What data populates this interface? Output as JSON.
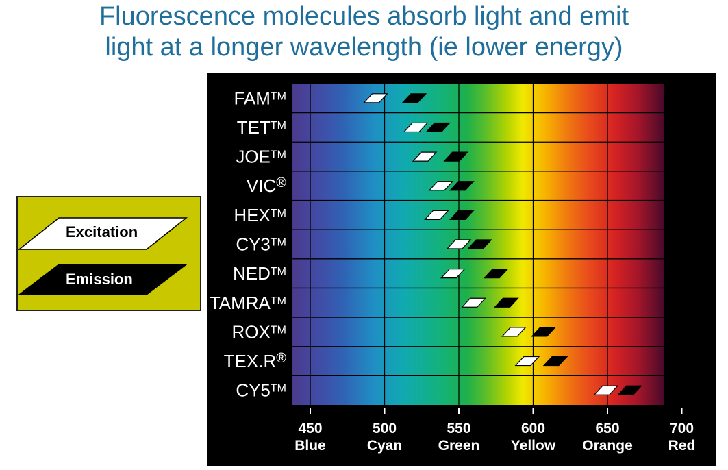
{
  "title_line1": "Fluorescence molecules absorb light and emit",
  "title_line2": "light at a longer wavelength (ie lower energy)",
  "legend": {
    "excitation_label": "Excitation",
    "emission_label": "Emission",
    "background_color": "#c9c800"
  },
  "chart_data": {
    "type": "range",
    "xlim": [
      430,
      690
    ],
    "x_ticks": [
      450,
      500,
      550,
      600,
      650,
      700
    ],
    "x_tick_colors": [
      "Blue",
      "Cyan",
      "Green",
      "Yellow",
      "Orange",
      "Red"
    ],
    "series": [
      {
        "name": "Excitation",
        "color": "#ffffff"
      },
      {
        "name": "Emission",
        "color": "#000000"
      }
    ],
    "dyes": [
      {
        "name": "FAM",
        "mark": "TM",
        "excitation": 494,
        "emission": 520
      },
      {
        "name": "TET",
        "mark": "TM",
        "excitation": 521,
        "emission": 536
      },
      {
        "name": "JOE",
        "mark": "TM",
        "excitation": 527,
        "emission": 548
      },
      {
        "name": "VIC",
        "mark": "®",
        "excitation": 538,
        "emission": 552
      },
      {
        "name": "HEX",
        "mark": "TM",
        "excitation": 535,
        "emission": 552
      },
      {
        "name": "CY3",
        "mark": "TM",
        "excitation": 550,
        "emission": 564
      },
      {
        "name": "NED",
        "mark": "TM",
        "excitation": 546,
        "emission": 575
      },
      {
        "name": "TAMRA",
        "mark": "TM",
        "excitation": 560,
        "emission": 582
      },
      {
        "name": "ROX",
        "mark": "TM",
        "excitation": 587,
        "emission": 607
      },
      {
        "name": "TEX.R",
        "mark": "®",
        "excitation": 596,
        "emission": 615
      },
      {
        "name": "CY5",
        "mark": "TM",
        "excitation": 649,
        "emission": 665
      }
    ]
  }
}
